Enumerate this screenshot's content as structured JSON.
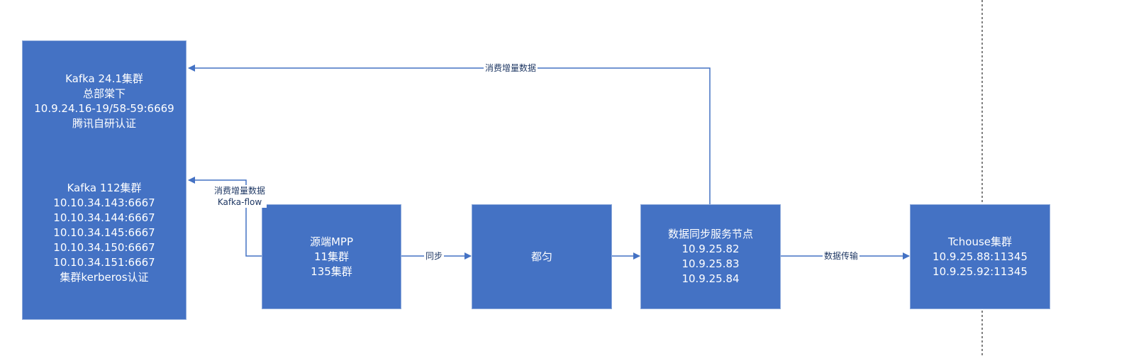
{
  "nodes": {
    "kafka": {
      "cluster1": [
        "Kafka 24.1集群",
        "总部棠下",
        "10.9.24.16-19/58-59:6669",
        "腾讯自研认证"
      ],
      "cluster2": [
        "Kafka 112集群",
        "10.10.34.143:6667",
        "10.10.34.144:6667",
        "10.10.34.145:6667",
        "10.10.34.150:6667",
        "10.10.34.151:6667",
        "集群kerberos认证"
      ]
    },
    "source_mpp": [
      "源端MPP",
      "11集群",
      "135集群"
    ],
    "duyun": [
      "都匀"
    ],
    "sync_service": [
      "数据同步服务节点",
      "10.9.25.82",
      "10.9.25.83",
      "10.9.25.84"
    ],
    "tchouse": [
      "Tchouse集群",
      "10.9.25.88:11345",
      "10.9.25.92:11345"
    ]
  },
  "edges": {
    "sync_to_kafka": "消费增量数据",
    "mpp_to_kafka": [
      "消费增量数据",
      "Kafka-flow"
    ],
    "mpp_to_duyun": "同步",
    "sync_to_tchouse": "数据传输"
  },
  "colors": {
    "node_fill": "#4472c4",
    "node_border": "#8eaadb",
    "line": "#4472c4",
    "text_on_node": "#ffffff",
    "label_text": "#1f3864"
  }
}
